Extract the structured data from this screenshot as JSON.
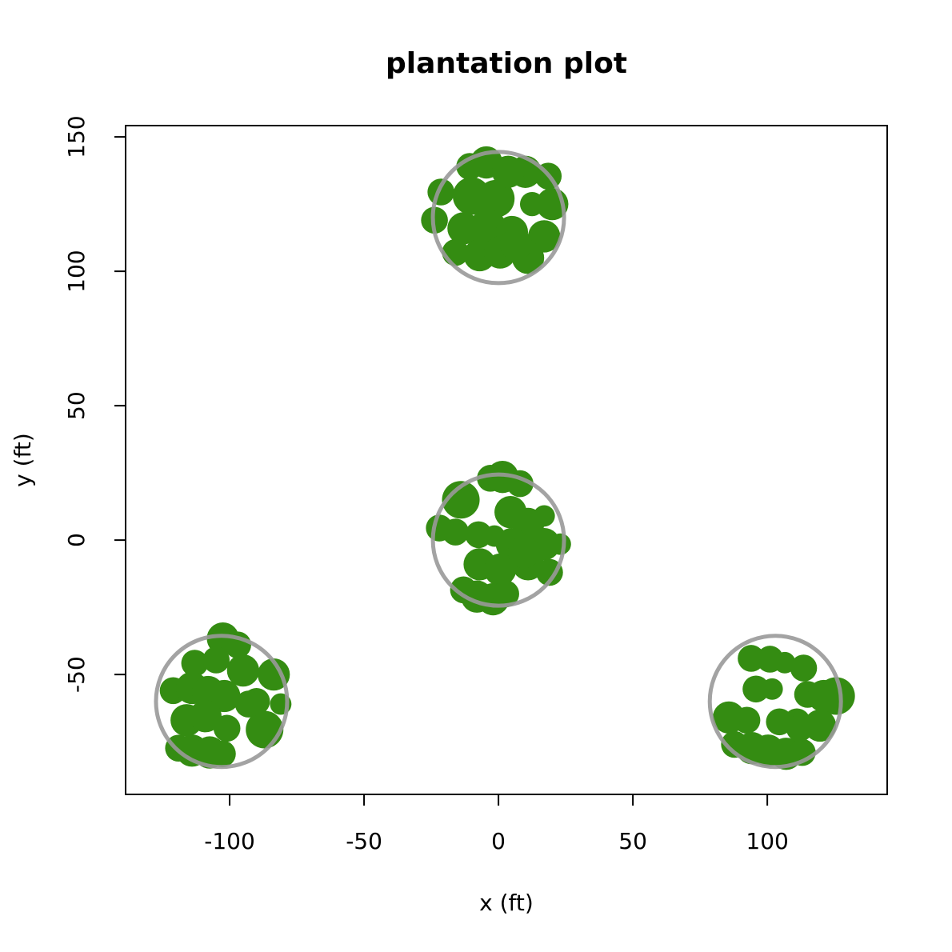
{
  "chart_data": {
    "type": "scatter",
    "title": "plantation plot",
    "xlabel": "x (ft)",
    "ylabel": "y (ft)",
    "xlim": [
      -138.7,
      144.6
    ],
    "ylim": [
      -94.6,
      154.2
    ],
    "xticks": [
      -100,
      -50,
      0,
      50,
      100
    ],
    "yticks": [
      -50,
      0,
      50,
      100,
      150
    ],
    "trees": {
      "color": "#348c12",
      "x": [
        -10.7,
        -4.5,
        18.5,
        10,
        -21.4,
        -23.8,
        20,
        12.5,
        -1,
        -10,
        -13,
        -4,
        5,
        17,
        -16,
        -7,
        0.6,
        11,
        6.5,
        3.6,
        -14,
        -3,
        1.5,
        8,
        -22,
        -16,
        -7.4,
        -1.5,
        4.5,
        17,
        11,
        23,
        17,
        5,
        -7,
        0.6,
        11,
        19,
        -13,
        -8,
        -2,
        2.7,
        9.5,
        -102.5,
        -97,
        -113,
        -105,
        -95,
        -83.6,
        -121,
        -114,
        -108,
        -102,
        -90,
        -81,
        -116,
        -109,
        -101,
        -87,
        -119,
        -114,
        -107.4,
        -102.7,
        -93,
        94,
        101,
        106.5,
        113.5,
        95.8,
        101.8,
        115,
        125.6,
        121,
        85.7,
        92.4,
        104.5,
        111,
        119.6,
        87.8,
        94.3,
        100.3,
        107,
        113,
        112
      ],
      "y": [
        139,
        140.5,
        135.4,
        137,
        129.5,
        119,
        125,
        125,
        127,
        128,
        116,
        116,
        114.6,
        113,
        107,
        106,
        107,
        105,
        110,
        137,
        15,
        23,
        23.5,
        21,
        4.5,
        3,
        2,
        1.5,
        10.4,
        9,
        6,
        -1.5,
        -1.5,
        -1.5,
        -9,
        -11,
        -9,
        -12,
        -18.5,
        -21,
        -22,
        -20,
        -4.5,
        -36.6,
        -39,
        -45.8,
        -44.6,
        -48.5,
        -50,
        -56,
        -55,
        -56.5,
        -58,
        -60,
        -61,
        -67,
        -65.5,
        -70,
        -70.5,
        -77.4,
        -78.3,
        -79,
        -79.5,
        -61,
        -44,
        -44.3,
        -45.6,
        -47.6,
        -55.4,
        -55.4,
        -57.4,
        -58,
        -58,
        -66,
        -67,
        -67.6,
        -67.6,
        -69,
        -76,
        -77.4,
        -78.3,
        -79.5,
        -79,
        -70
      ],
      "r": [
        5,
        6,
        5,
        6,
        5,
        5,
        6,
        4.5,
        7,
        7,
        6,
        7,
        6,
        6,
        5,
        6,
        6,
        6,
        6,
        6,
        7,
        5,
        6,
        5,
        5,
        5,
        5,
        4,
        6,
        4,
        6,
        4,
        6,
        6,
        6,
        6,
        6,
        5,
        5,
        6,
        6,
        5,
        6,
        6,
        5,
        5,
        5,
        6,
        6,
        5,
        6,
        6,
        6,
        5,
        4,
        6,
        6,
        5,
        7,
        5,
        6,
        6,
        5,
        5,
        5,
        5,
        4,
        5,
        5,
        4,
        5,
        7,
        6,
        6,
        5,
        5,
        5,
        6,
        5,
        6,
        6,
        6,
        5,
        5
      ]
    },
    "plots": {
      "color": "#999999",
      "x": [
        0,
        0,
        -103,
        103
      ],
      "y": [
        120,
        0,
        -60,
        -60
      ],
      "r": [
        24.4,
        24.4,
        24.4,
        24.4
      ]
    }
  }
}
